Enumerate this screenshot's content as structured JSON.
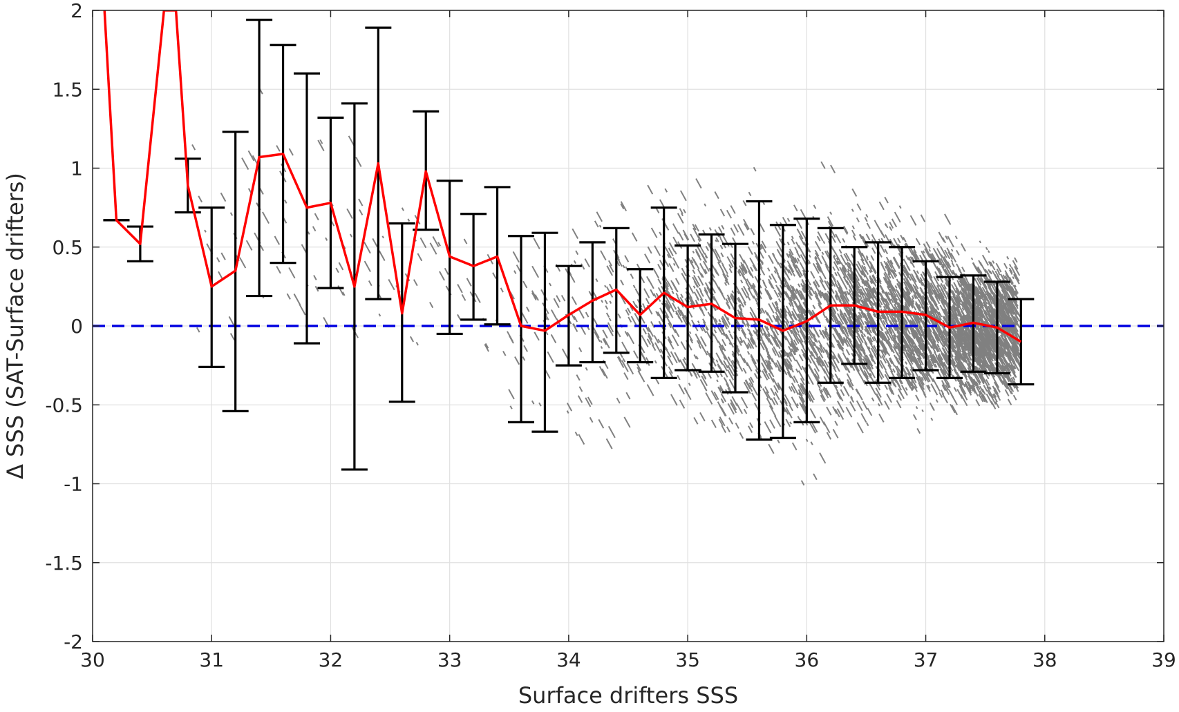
{
  "chart_data": {
    "type": "scatter",
    "title": "",
    "xlabel": "Surface drifters SSS",
    "ylabel": "Δ SSS (SAT-Surface drifters)",
    "xlim": [
      30,
      39
    ],
    "ylim": [
      -2,
      2
    ],
    "x_ticks": [
      "30",
      "31",
      "32",
      "33",
      "34",
      "35",
      "36",
      "37",
      "38",
      "39"
    ],
    "y_ticks": [
      "-2",
      "-1.5",
      "-1",
      "-0.5",
      "0",
      "0.5",
      "1",
      "1.5",
      "2"
    ],
    "grid": true,
    "colors": {
      "scatter": "#808080",
      "mean_line": "#ff0000",
      "error_bars": "#000000",
      "zero_line": "#0000e0",
      "grid": "#e0e0e0",
      "axes": "#262626"
    },
    "reference_line": {
      "y": 0,
      "style": "dashed"
    },
    "mean_curve": {
      "x": [
        30.1,
        30.2,
        30.4,
        30.6,
        30.7,
        30.8,
        31.0,
        31.2,
        31.4,
        31.6,
        31.8,
        32.0,
        32.2,
        32.4,
        32.6,
        32.8,
        33.0,
        33.2,
        33.4,
        33.6,
        33.8,
        34.0,
        34.2,
        34.4,
        34.6,
        34.8,
        35.0,
        35.2,
        35.4,
        35.6,
        35.8,
        36.0,
        36.2,
        36.4,
        36.6,
        36.8,
        37.0,
        37.2,
        37.4,
        37.6,
        37.8
      ],
      "y": [
        2.0,
        0.67,
        0.52,
        2.0,
        2.0,
        0.89,
        0.25,
        0.35,
        1.07,
        1.09,
        0.75,
        0.78,
        0.25,
        1.03,
        0.08,
        0.98,
        0.44,
        0.38,
        0.44,
        0.0,
        -0.03,
        0.07,
        0.16,
        0.23,
        0.07,
        0.21,
        0.12,
        0.14,
        0.05,
        0.04,
        -0.03,
        0.03,
        0.13,
        0.13,
        0.09,
        0.09,
        0.07,
        -0.01,
        0.02,
        -0.01,
        -0.1
      ]
    },
    "error_bars": {
      "x": [
        30.2,
        30.4,
        30.8,
        31.0,
        31.2,
        31.4,
        31.6,
        31.8,
        32.0,
        32.2,
        32.4,
        32.6,
        32.8,
        33.0,
        33.2,
        33.4,
        33.6,
        33.8,
        34.0,
        34.2,
        34.4,
        34.6,
        34.8,
        35.0,
        35.2,
        35.4,
        35.6,
        35.8,
        36.0,
        36.2,
        36.4,
        36.6,
        36.8,
        37.0,
        37.2,
        37.4,
        37.6,
        37.8
      ],
      "upper": [
        0.67,
        0.63,
        1.06,
        0.75,
        1.23,
        1.94,
        1.78,
        1.6,
        1.32,
        1.41,
        1.89,
        0.65,
        1.36,
        0.92,
        0.71,
        0.88,
        0.57,
        0.59,
        0.38,
        0.53,
        0.62,
        0.36,
        0.75,
        0.51,
        0.58,
        0.52,
        0.79,
        0.64,
        0.68,
        0.62,
        0.5,
        0.53,
        0.5,
        0.41,
        0.31,
        0.32,
        0.28,
        0.17
      ],
      "lower": [
        0.67,
        0.41,
        0.72,
        -0.26,
        -0.54,
        0.19,
        0.4,
        -0.11,
        0.24,
        -0.91,
        0.17,
        -0.48,
        0.61,
        -0.05,
        0.04,
        0.01,
        -0.61,
        -0.67,
        -0.25,
        -0.23,
        -0.17,
        -0.23,
        -0.33,
        -0.28,
        -0.29,
        -0.42,
        -0.72,
        -0.71,
        -0.61,
        -0.36,
        -0.24,
        -0.36,
        -0.33,
        -0.28,
        -0.33,
        -0.29,
        -0.3,
        -0.37
      ]
    },
    "scatter_description_bins": {
      "x": [
        31.0,
        31.5,
        32.0,
        32.5,
        33.0,
        33.5,
        34.0,
        34.5,
        35.0,
        35.5,
        36.0,
        36.5,
        37.0,
        37.5
      ],
      "center": [
        0.5,
        0.7,
        0.6,
        0.4,
        0.3,
        0.1,
        0.05,
        0.1,
        0.15,
        0.05,
        0.05,
        0.1,
        0.05,
        0.0
      ],
      "spread": [
        0.6,
        0.6,
        0.6,
        0.5,
        0.4,
        0.5,
        0.6,
        0.6,
        0.6,
        0.6,
        0.6,
        0.5,
        0.45,
        0.35
      ],
      "density": [
        15,
        25,
        25,
        20,
        15,
        30,
        60,
        120,
        260,
        380,
        520,
        650,
        900,
        1400
      ]
    }
  }
}
